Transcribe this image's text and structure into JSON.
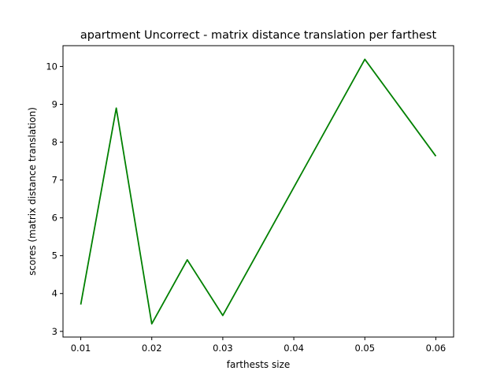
{
  "chart_data": {
    "type": "line",
    "title": "apartment Uncorrect - matrix distance translation per farthest",
    "xlabel": "farthests size",
    "ylabel": "scores (matrix distance translation)",
    "xlim": [
      0.0075,
      0.0625
    ],
    "ylim": [
      2.85,
      10.55
    ],
    "x_ticks": [
      0.01,
      0.02,
      0.03,
      0.04,
      0.05,
      0.06
    ],
    "x_tick_labels": [
      "0.01",
      "0.02",
      "0.03",
      "0.04",
      "0.05",
      "0.06"
    ],
    "y_ticks": [
      3,
      4,
      5,
      6,
      7,
      8,
      9,
      10
    ],
    "y_tick_labels": [
      "3",
      "4",
      "5",
      "6",
      "7",
      "8",
      "9",
      "10"
    ],
    "grid": false,
    "series": [
      {
        "color": "#008000",
        "x": [
          0.01,
          0.015,
          0.02,
          0.025,
          0.03,
          0.05,
          0.06
        ],
        "y": [
          3.71,
          8.9,
          3.2,
          4.89,
          3.42,
          10.19,
          7.63
        ]
      }
    ]
  }
}
